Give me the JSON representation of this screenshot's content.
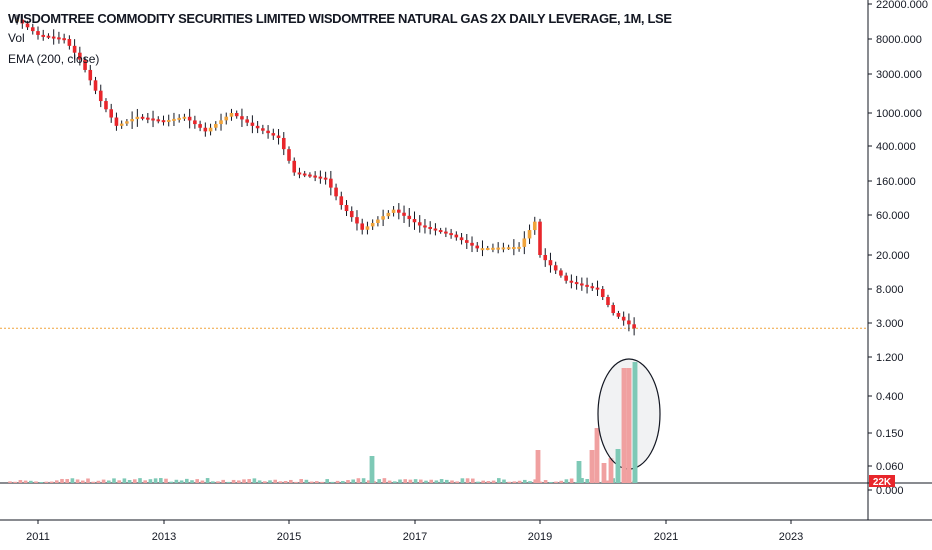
{
  "chart_data": {
    "type": "candlestick",
    "title": "WISDOMTREE COMMODITY SECURITIES LIMITED WISDOMTREE NATURAL GAS 2X DAILY LEVERAGE, 1M, LSE",
    "legend": [
      "Vol",
      "EMA (200, close)"
    ],
    "price_scale": "log",
    "y_ticks": [
      "22000.000",
      "8000.000",
      "3000.000",
      "1000.000",
      "400.000",
      "160.000",
      "60.000",
      "20.000",
      "8.000",
      "3.000",
      "1.200",
      "0.400",
      "0.150",
      "0.060",
      "0.000"
    ],
    "volume_marker": "22K",
    "x_ticks": [
      "2011",
      "2013",
      "2015",
      "2017",
      "2019",
      "2021",
      "2023"
    ],
    "last_price": 2.6,
    "close_series": [
      {
        "date": "2010-09",
        "close": 14000
      },
      {
        "date": "2011-01",
        "close": 9000
      },
      {
        "date": "2011-06",
        "close": 8000
      },
      {
        "date": "2011-09",
        "close": 4500
      },
      {
        "date": "2012-01",
        "close": 1400
      },
      {
        "date": "2012-04",
        "close": 700
      },
      {
        "date": "2012-08",
        "close": 900
      },
      {
        "date": "2013-01",
        "close": 800
      },
      {
        "date": "2013-05",
        "close": 900
      },
      {
        "date": "2013-09",
        "close": 600
      },
      {
        "date": "2014-02",
        "close": 1000
      },
      {
        "date": "2014-06",
        "close": 700
      },
      {
        "date": "2014-11",
        "close": 500
      },
      {
        "date": "2015-02",
        "close": 200
      },
      {
        "date": "2015-08",
        "close": 170
      },
      {
        "date": "2015-11",
        "close": 80
      },
      {
        "date": "2016-03",
        "close": 40
      },
      {
        "date": "2016-09",
        "close": 70
      },
      {
        "date": "2017-02",
        "close": 45
      },
      {
        "date": "2017-08",
        "close": 35
      },
      {
        "date": "2018-01",
        "close": 24
      },
      {
        "date": "2018-09",
        "close": 25
      },
      {
        "date": "2018-12",
        "close": 50
      },
      {
        "date": "2019-01",
        "close": 20
      },
      {
        "date": "2019-06",
        "close": 10
      },
      {
        "date": "2019-12",
        "close": 8
      },
      {
        "date": "2020-03",
        "close": 4
      },
      {
        "date": "2020-07",
        "close": 2.6
      }
    ],
    "volume_highlight": "last four monthly volume bars circled"
  }
}
